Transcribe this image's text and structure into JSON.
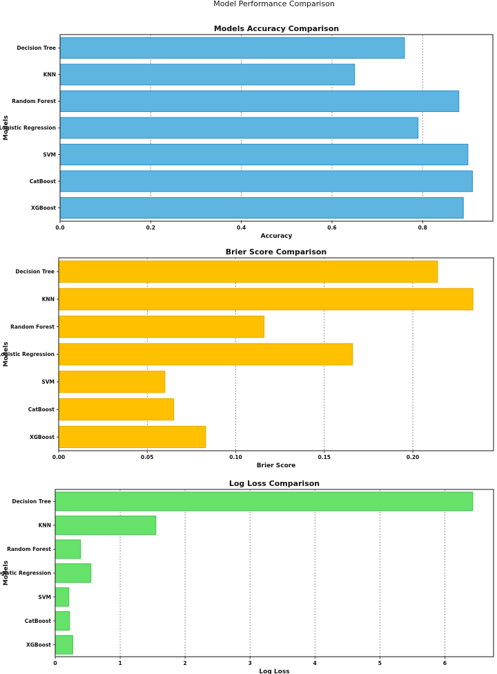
{
  "figure": {
    "title": "Model Performance Comparison"
  },
  "chart_data": [
    {
      "type": "bar",
      "orientation": "horizontal",
      "title": "Models Accuracy Comparison",
      "xlabel": "Accuracy",
      "ylabel": "Models",
      "categories": [
        "Decision Tree",
        "KNN",
        "Random Forest",
        "Logistic Regression",
        "SVM",
        "CatBoost",
        "XGBoost"
      ],
      "values": [
        0.76,
        0.65,
        0.88,
        0.79,
        0.9,
        0.91,
        0.89
      ],
      "xlim": [
        0,
        0.955
      ],
      "ticks": [
        0.0,
        0.2,
        0.4,
        0.6,
        0.8
      ],
      "tick_labels": [
        "0.0",
        "0.2",
        "0.4",
        "0.6",
        "0.8"
      ],
      "grid": "x-dashed",
      "color": "#5DB5E0",
      "edge_color": "#2E8FCC"
    },
    {
      "type": "bar",
      "orientation": "horizontal",
      "title": "Brier Score Comparison",
      "xlabel": "Brier Score",
      "ylabel": "Models",
      "categories": [
        "Decision Tree",
        "KNN",
        "Random Forest",
        "Logistic Regression",
        "SVM",
        "CatBoost",
        "XGBoost"
      ],
      "values": [
        0.214,
        0.234,
        0.116,
        0.166,
        0.06,
        0.065,
        0.083
      ],
      "xlim": [
        0,
        0.2456
      ],
      "ticks": [
        0.0,
        0.05,
        0.1,
        0.15,
        0.2
      ],
      "tick_labels": [
        "0.00",
        "0.05",
        "0.10",
        "0.15",
        "0.20"
      ],
      "grid": "x-dashed",
      "color": "#FFC000",
      "edge_color": "#E5A800"
    },
    {
      "type": "bar",
      "orientation": "horizontal",
      "title": "Log Loss Comparison",
      "xlabel": "Log Loss",
      "ylabel": "Models",
      "categories": [
        "Decision Tree",
        "KNN",
        "Random Forest",
        "Logistic Regression",
        "SVM",
        "CatBoost",
        "XGBoost"
      ],
      "values": [
        6.43,
        1.55,
        0.39,
        0.55,
        0.21,
        0.22,
        0.27
      ],
      "xlim": [
        0,
        6.75
      ],
      "ticks": [
        0,
        1,
        2,
        3,
        4,
        5,
        6
      ],
      "tick_labels": [
        "0",
        "1",
        "2",
        "3",
        "4",
        "5",
        "6"
      ],
      "grid": "x-dashed",
      "color": "#66E26A",
      "edge_color": "#3DC443"
    }
  ]
}
